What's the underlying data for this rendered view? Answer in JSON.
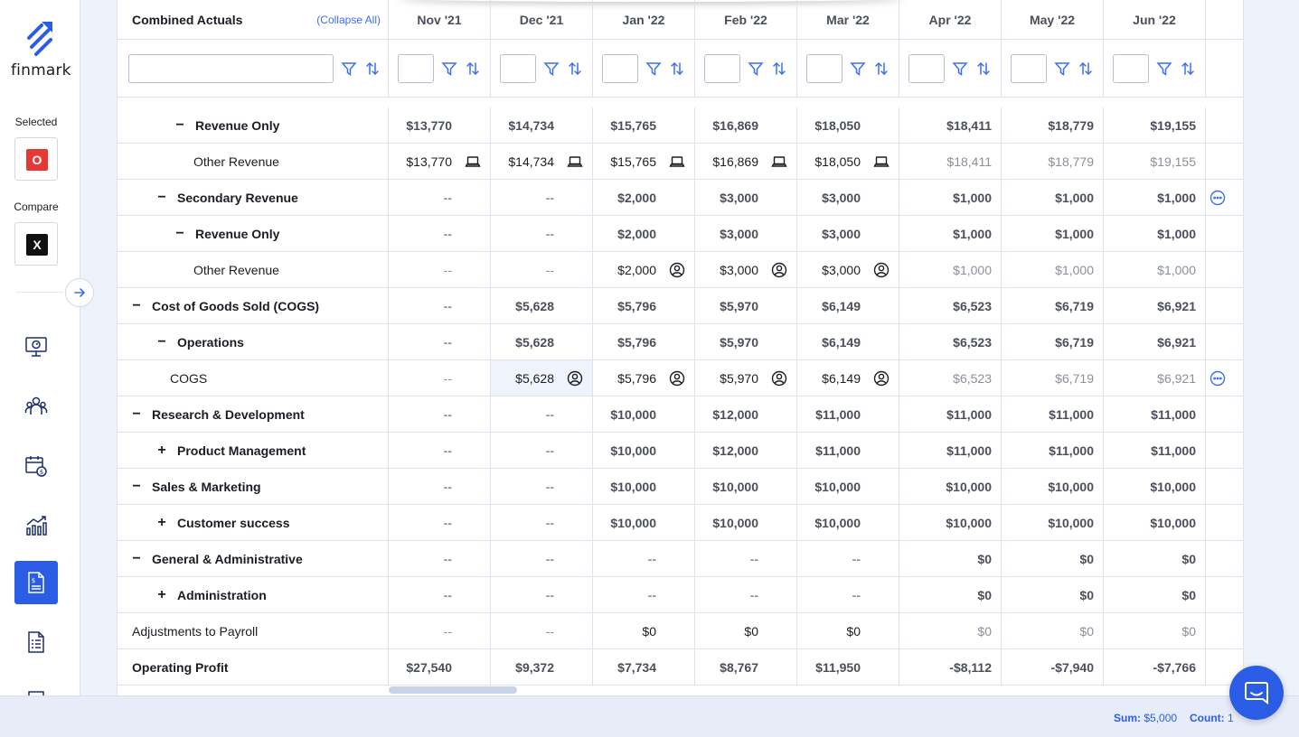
{
  "app": {
    "logo_text": "finmark",
    "brand_color": "#2b5ce6"
  },
  "sidebar": {
    "selected_label": "Selected",
    "selected_badge": "O",
    "selected_color": "#e53935",
    "compare_label": "Compare",
    "compare_badge": "X",
    "compare_color": "#111111",
    "nav": [
      {
        "icon": "dashboard-monitor-icon",
        "active": false
      },
      {
        "icon": "people-icon",
        "active": false
      },
      {
        "icon": "calendar-dollar-icon",
        "active": false
      },
      {
        "icon": "growth-chart-icon",
        "active": false
      },
      {
        "icon": "financial-report-icon",
        "active": true
      },
      {
        "icon": "document-list-icon",
        "active": false
      }
    ]
  },
  "table": {
    "title": "Combined Actuals",
    "collapse_all": "(Collapse All)",
    "months": [
      "Nov '21",
      "Dec '21",
      "Jan '22",
      "Feb '22",
      "Mar '22",
      "Apr '22",
      "May '22",
      "Jun '22"
    ],
    "rows": [
      {
        "label": "Revenue Only",
        "level": 2,
        "toggle": "−",
        "bold": true,
        "values": [
          "$13,770",
          "$14,734",
          "$15,765",
          "$16,869",
          "$18,050",
          "$18,411",
          "$18,779",
          "$19,155"
        ]
      },
      {
        "label": "Other Revenue",
        "level": 3,
        "toggle": "",
        "bold": false,
        "values": [
          "$13,770",
          "$14,734",
          "$15,765",
          "$16,869",
          "$18,050",
          "$18,411",
          "$18,779",
          "$19,155"
        ],
        "icons": [
          "laptop-icon",
          "laptop-icon",
          "laptop-icon",
          "laptop-icon",
          "laptop-icon",
          "",
          "",
          ""
        ]
      },
      {
        "label": "Secondary Revenue",
        "level": 1,
        "toggle": "−",
        "bold": true,
        "values": [
          "--",
          "--",
          "$2,000",
          "$3,000",
          "$3,000",
          "$1,000",
          "$1,000",
          "$1,000"
        ],
        "menu": true
      },
      {
        "label": "Revenue Only",
        "level": 2,
        "toggle": "−",
        "bold": true,
        "values": [
          "--",
          "--",
          "$2,000",
          "$3,000",
          "$3,000",
          "$1,000",
          "$1,000",
          "$1,000"
        ]
      },
      {
        "label": "Other Revenue",
        "level": 3,
        "toggle": "",
        "bold": false,
        "values": [
          "--",
          "--",
          "$2,000",
          "$3,000",
          "$3,000",
          "$1,000",
          "$1,000",
          "$1,000"
        ],
        "icons": [
          "",
          "",
          "user-circle-icon",
          "user-circle-icon",
          "user-circle-icon",
          "",
          "",
          ""
        ]
      },
      {
        "label": "Cost of Goods Sold (COGS)",
        "level": 0,
        "toggle": "−",
        "bold": true,
        "values": [
          "--",
          "$5,628",
          "$5,796",
          "$5,970",
          "$6,149",
          "$6,523",
          "$6,719",
          "$6,921"
        ]
      },
      {
        "label": "Operations",
        "level": 1,
        "toggle": "−",
        "bold": true,
        "values": [
          "--",
          "$5,628",
          "$5,796",
          "$5,970",
          "$6,149",
          "$6,523",
          "$6,719",
          "$6,921"
        ]
      },
      {
        "label": "COGS",
        "level": 2,
        "toggle": "",
        "bold": false,
        "values": [
          "--",
          "$5,628",
          "$5,796",
          "$5,970",
          "$6,149",
          "$6,523",
          "$6,719",
          "$6,921"
        ],
        "icons": [
          "",
          "user-circle-icon",
          "user-circle-icon",
          "user-circle-icon",
          "user-circle-icon",
          "",
          "",
          ""
        ],
        "menu": true
      },
      {
        "label": "Research & Development",
        "level": 0,
        "toggle": "−",
        "bold": true,
        "values": [
          "--",
          "--",
          "$10,000",
          "$12,000",
          "$11,000",
          "$11,000",
          "$11,000",
          "$11,000"
        ]
      },
      {
        "label": "Product Management",
        "level": 1,
        "toggle": "+",
        "bold": true,
        "values": [
          "--",
          "--",
          "$10,000",
          "$12,000",
          "$11,000",
          "$11,000",
          "$11,000",
          "$11,000"
        ]
      },
      {
        "label": "Sales & Marketing",
        "level": 0,
        "toggle": "−",
        "bold": true,
        "values": [
          "--",
          "--",
          "$10,000",
          "$10,000",
          "$10,000",
          "$10,000",
          "$10,000",
          "$10,000"
        ]
      },
      {
        "label": "Customer success",
        "level": 1,
        "toggle": "+",
        "bold": true,
        "values": [
          "--",
          "--",
          "$10,000",
          "$10,000",
          "$10,000",
          "$10,000",
          "$10,000",
          "$10,000"
        ]
      },
      {
        "label": "General & Administrative",
        "level": 0,
        "toggle": "−",
        "bold": true,
        "values": [
          "--",
          "--",
          "--",
          "--",
          "--",
          "$0",
          "$0",
          "$0"
        ]
      },
      {
        "label": "Administration",
        "level": 1,
        "toggle": "+",
        "bold": true,
        "values": [
          "--",
          "--",
          "--",
          "--",
          "--",
          "$0",
          "$0",
          "$0"
        ]
      },
      {
        "label": "Adjustments to Payroll",
        "level": -1,
        "toggle": "",
        "bold": false,
        "values": [
          "--",
          "--",
          "$0",
          "$0",
          "$0",
          "$0",
          "$0",
          "$0"
        ]
      },
      {
        "label": "Operating Profit",
        "level": -1,
        "toggle": "",
        "bold": true,
        "values": [
          "$27,540",
          "$9,372",
          "$7,734",
          "$8,767",
          "$11,950",
          "-$8,112",
          "-$7,940",
          "-$7,766"
        ]
      }
    ]
  },
  "status": {
    "sum_label": "Sum:",
    "sum_value": "$5,000",
    "count_label": "Count:",
    "count_value": "1"
  }
}
